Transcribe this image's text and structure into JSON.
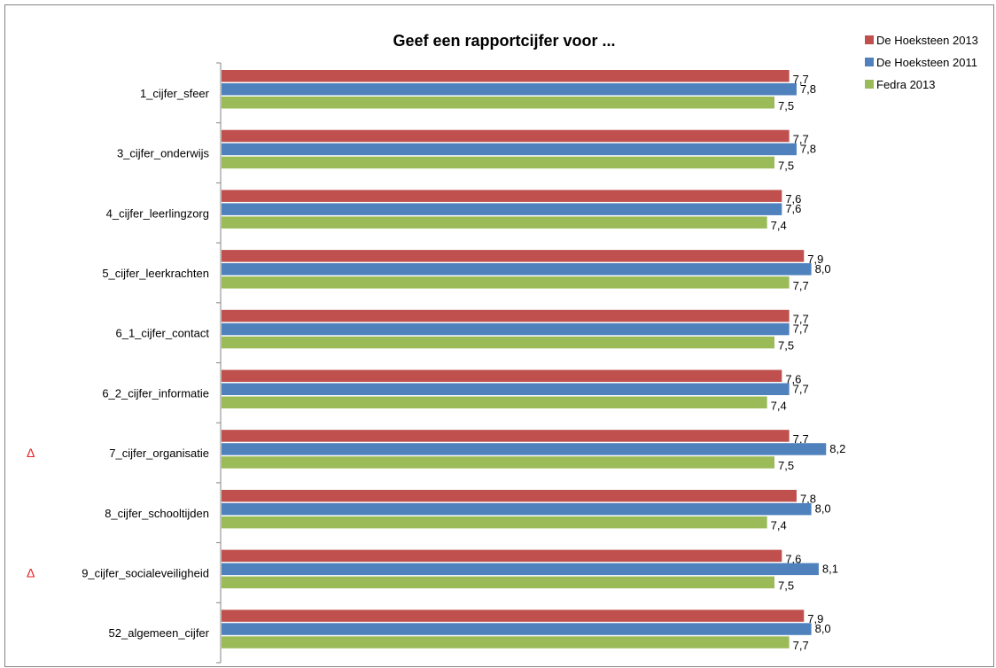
{
  "chart_data": {
    "type": "bar",
    "orientation": "horizontal",
    "title": "Geef een rapportcijfer voor ...",
    "categories": [
      "1_cijfer_sfeer",
      "3_cijfer_onderwijs",
      "4_cijfer_leerlingzorg",
      "5_cijfer_leerkrachten",
      "6_1_cijfer_contact",
      "6_2_cijfer_informatie",
      "7_cijfer_organisatie",
      "8_cijfer_schooltijden",
      "9_cijfer_socialeveiligheid",
      "52_algemeen_cijfer"
    ],
    "series": [
      {
        "name": "De Hoeksteen 2013",
        "color": "#c0504d",
        "values": [
          7.7,
          7.7,
          7.6,
          7.9,
          7.7,
          7.6,
          7.7,
          7.8,
          7.6,
          7.9
        ],
        "labels": [
          "7,7",
          "7,7",
          "7,6",
          "7,9",
          "7,7",
          "7,6",
          "7,7",
          "7,8",
          "7,6",
          "7,9"
        ]
      },
      {
        "name": "De Hoeksteen 2011",
        "color": "#4f81bd",
        "values": [
          7.8,
          7.8,
          7.6,
          8.0,
          7.7,
          7.7,
          8.2,
          8.0,
          8.1,
          8.0
        ],
        "labels": [
          "7,8",
          "7,8",
          "7,6",
          "8,0",
          "7,7",
          "7,7",
          "8,2",
          "8,0",
          "8,1",
          "8,0"
        ]
      },
      {
        "name": "Fedra 2013",
        "color": "#9bbb59",
        "values": [
          7.5,
          7.5,
          7.4,
          7.7,
          7.5,
          7.4,
          7.5,
          7.4,
          7.5,
          7.7
        ],
        "labels": [
          "7,5",
          "7,5",
          "7,4",
          "7,7",
          "7,5",
          "7,4",
          "7,5",
          "7,4",
          "7,5",
          "7,7"
        ]
      }
    ],
    "markers": [
      {
        "category": "7_cijfer_organisatie",
        "symbol": "Δ",
        "color": "#e8201f"
      },
      {
        "category": "9_cijfer_socialeveiligheid",
        "symbol": "Δ",
        "color": "#e8201f"
      }
    ],
    "legend_position": "top-right",
    "grid": false
  }
}
